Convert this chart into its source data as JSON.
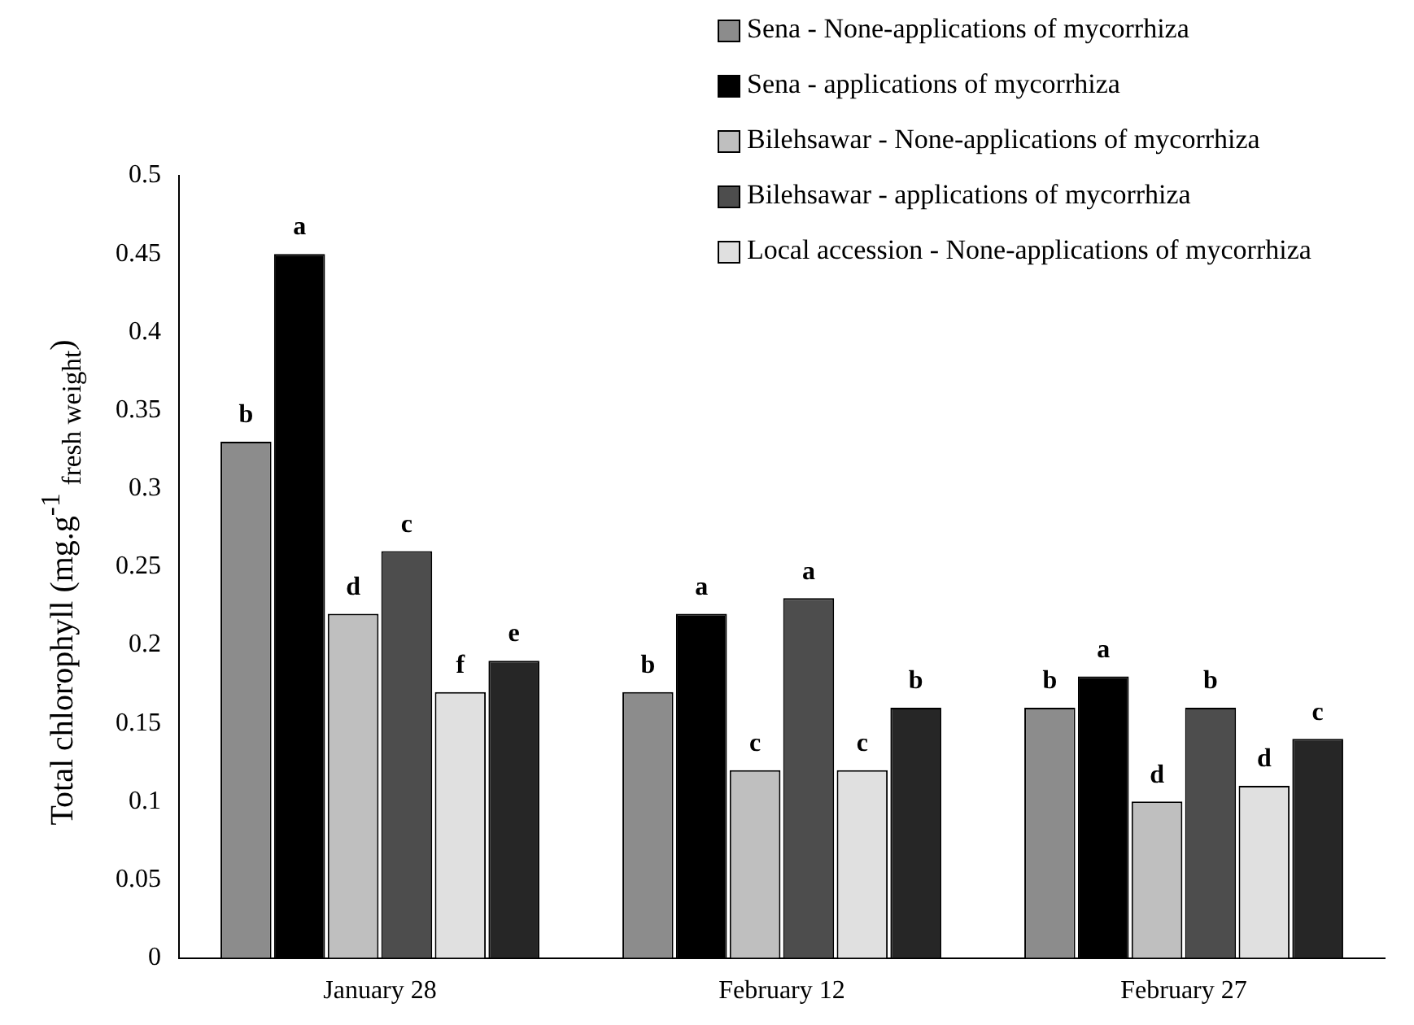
{
  "chart_data": {
    "type": "bar",
    "ylabel": "Total chlorophyll (mg.g$^{-1}$ $_{fresh weight}$)",
    "categories": [
      "January 28",
      "February 12",
      "February 27"
    ],
    "series": [
      {
        "name": "Sena - None-applications of mycorrhiza",
        "color": "#8c8c8c",
        "values": [
          0.33,
          0.17,
          0.16
        ],
        "value_labels": [
          "b",
          "b",
          "b"
        ]
      },
      {
        "name": "Sena - applications of mycorrhiza",
        "color": "#000000",
        "values": [
          0.45,
          0.22,
          0.18
        ],
        "value_labels": [
          "a",
          "a",
          "a"
        ]
      },
      {
        "name": "Bilehsawar - None-applications of mycorrhiza",
        "color": "#bfbfbf",
        "values": [
          0.22,
          0.12,
          0.1
        ],
        "value_labels": [
          "d",
          "c",
          "d"
        ]
      },
      {
        "name": "Bilehsawar - applications of mycorrhiza",
        "color": "#4d4d4d",
        "values": [
          0.26,
          0.23,
          0.16
        ],
        "value_labels": [
          "c",
          "a",
          "b"
        ]
      },
      {
        "name": "Local accession - None-applications of mycorrhiza",
        "color": "#e0e0e0",
        "values": [
          0.17,
          0.12,
          0.11
        ],
        "value_labels": [
          "f",
          "c",
          "d"
        ]
      },
      {
        "color": "#262626",
        "values": [
          0.19,
          0.16,
          0.14
        ],
        "value_labels": [
          "e",
          "b",
          "c"
        ]
      }
    ],
    "ylim": [
      0,
      0.5
    ],
    "yticks": [
      0,
      0.05,
      0.1,
      0.15,
      0.2,
      0.25,
      0.3,
      0.35,
      0.4,
      0.45,
      0.5
    ],
    "grid": false,
    "legend": "top right"
  }
}
